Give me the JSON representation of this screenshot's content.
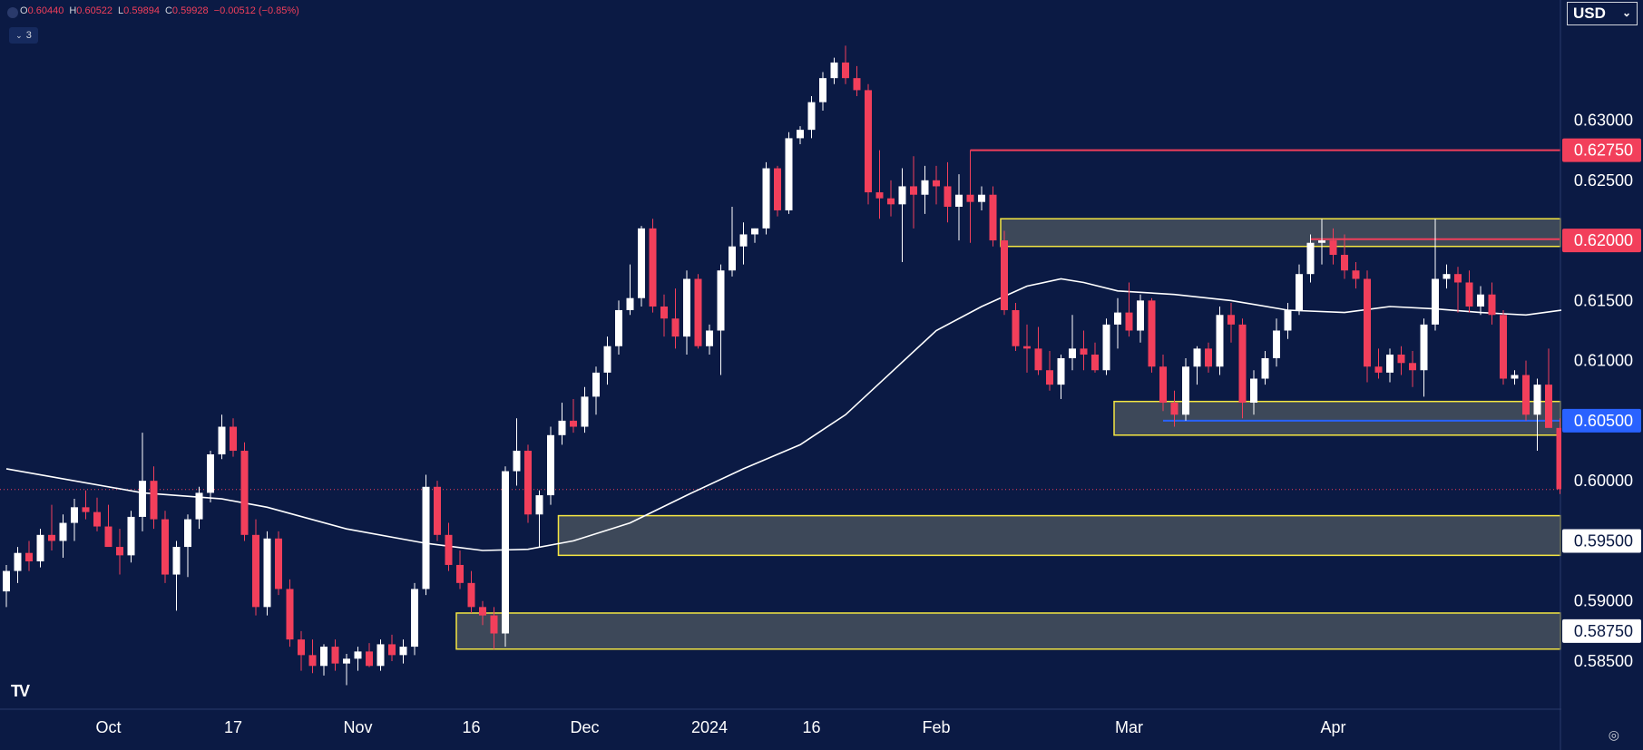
{
  "ohlc": {
    "o_label": "O",
    "o": "0.60440",
    "h_label": "H",
    "h": "0.60522",
    "l_label": "L",
    "l": "0.59894",
    "c_label": "C",
    "c": "0.59928",
    "change": "−0.00512 (−0.85%)"
  },
  "indicators_toggle": "3",
  "currency": "USD",
  "logo_text": "TV",
  "chart_data": {
    "type": "candlestick",
    "ylim": [
      0.581,
      0.64
    ],
    "y_ticks": [
      "0.63000",
      "0.62500",
      "0.61500",
      "0.61000",
      "0.60000",
      "0.59000",
      "0.58500"
    ],
    "x_ticks": [
      "Oct",
      "17",
      "Nov",
      "16",
      "Dec",
      "2024",
      "16",
      "Feb",
      "Mar",
      "Apr"
    ],
    "price_labels": [
      {
        "text": "0.62750",
        "value": 0.6275,
        "color": "#f23f5b"
      },
      {
        "text": "0.62000",
        "value": 0.62,
        "color": "#f23f5b"
      },
      {
        "text": "0.60500",
        "value": 0.605,
        "color": "#2962ff"
      },
      {
        "text": "0.59500",
        "value": 0.595,
        "color": "#ffffff"
      },
      {
        "text": "0.58750",
        "value": 0.5875,
        "color": "#ffffff"
      }
    ],
    "last_close": 0.59928,
    "zones": [
      {
        "start": 88,
        "top": 0.6218,
        "bottom": 0.6195
      },
      {
        "start": 98,
        "top": 0.6066,
        "bottom": 0.6038
      },
      {
        "start": 49,
        "top": 0.5971,
        "bottom": 0.5938
      },
      {
        "start": 40,
        "top": 0.589,
        "bottom": 0.586
      }
    ],
    "hlines": [
      {
        "value": 0.6275,
        "start": 85,
        "color": "#f23f5b"
      },
      {
        "value": 0.6201,
        "start": 115,
        "color": "#f23f5b"
      },
      {
        "value": 0.605,
        "start": 102,
        "color": "#2962ff"
      }
    ],
    "candles": [
      [
        0.5908,
        0.593,
        0.5895,
        0.5925
      ],
      [
        0.5925,
        0.5945,
        0.5915,
        0.594
      ],
      [
        0.594,
        0.595,
        0.5925,
        0.5933
      ],
      [
        0.5933,
        0.596,
        0.5928,
        0.5955
      ],
      [
        0.5955,
        0.598,
        0.5942,
        0.595
      ],
      [
        0.595,
        0.5972,
        0.5936,
        0.5965
      ],
      [
        0.5965,
        0.5985,
        0.595,
        0.5978
      ],
      [
        0.5978,
        0.5992,
        0.5968,
        0.5974
      ],
      [
        0.5974,
        0.5986,
        0.5958,
        0.5962
      ],
      [
        0.5962,
        0.598,
        0.5948,
        0.5945
      ],
      [
        0.5945,
        0.596,
        0.5922,
        0.5938
      ],
      [
        0.5938,
        0.5975,
        0.5932,
        0.597
      ],
      [
        0.597,
        0.604,
        0.5958,
        0.6
      ],
      [
        0.6,
        0.6012,
        0.596,
        0.5968
      ],
      [
        0.5968,
        0.5975,
        0.5915,
        0.5922
      ],
      [
        0.5922,
        0.595,
        0.5892,
        0.5945
      ],
      [
        0.5945,
        0.5972,
        0.592,
        0.5968
      ],
      [
        0.5968,
        0.5995,
        0.596,
        0.599
      ],
      [
        0.599,
        0.6025,
        0.5982,
        0.6022
      ],
      [
        0.6022,
        0.6055,
        0.6018,
        0.6045
      ],
      [
        0.6045,
        0.6052,
        0.602,
        0.6025
      ],
      [
        0.6025,
        0.6032,
        0.595,
        0.5955
      ],
      [
        0.5955,
        0.5968,
        0.5888,
        0.5895
      ],
      [
        0.5895,
        0.5958,
        0.5888,
        0.5952
      ],
      [
        0.5952,
        0.5958,
        0.5905,
        0.591
      ],
      [
        0.591,
        0.5918,
        0.5862,
        0.5868
      ],
      [
        0.5868,
        0.5875,
        0.5842,
        0.5855
      ],
      [
        0.5855,
        0.5868,
        0.584,
        0.5846
      ],
      [
        0.5846,
        0.5864,
        0.5838,
        0.5862
      ],
      [
        0.5862,
        0.5868,
        0.5842,
        0.5848
      ],
      [
        0.5848,
        0.5856,
        0.583,
        0.5852
      ],
      [
        0.5852,
        0.5862,
        0.5842,
        0.5858
      ],
      [
        0.5858,
        0.5865,
        0.5845,
        0.5846
      ],
      [
        0.5846,
        0.5868,
        0.5842,
        0.5864
      ],
      [
        0.5864,
        0.5872,
        0.585,
        0.5855
      ],
      [
        0.5855,
        0.5868,
        0.5848,
        0.5862
      ],
      [
        0.5862,
        0.5915,
        0.5855,
        0.591
      ],
      [
        0.591,
        0.6005,
        0.5905,
        0.5995
      ],
      [
        0.5995,
        0.6,
        0.595,
        0.5955
      ],
      [
        0.5955,
        0.5965,
        0.5925,
        0.593
      ],
      [
        0.593,
        0.5942,
        0.591,
        0.5915
      ],
      [
        0.5915,
        0.5925,
        0.589,
        0.5895
      ],
      [
        0.5895,
        0.59,
        0.588,
        0.5888
      ],
      [
        0.5888,
        0.5895,
        0.586,
        0.5873
      ],
      [
        0.5873,
        0.6012,
        0.5862,
        0.6008
      ],
      [
        0.6008,
        0.6052,
        0.5996,
        0.6025
      ],
      [
        0.6025,
        0.603,
        0.5965,
        0.5972
      ],
      [
        0.5972,
        0.5992,
        0.5945,
        0.5988
      ],
      [
        0.5988,
        0.6045,
        0.598,
        0.6038
      ],
      [
        0.6038,
        0.6065,
        0.603,
        0.605
      ],
      [
        0.605,
        0.6068,
        0.604,
        0.6045
      ],
      [
        0.6045,
        0.6078,
        0.604,
        0.607
      ],
      [
        0.607,
        0.6095,
        0.6055,
        0.609
      ],
      [
        0.609,
        0.612,
        0.608,
        0.6112
      ],
      [
        0.6112,
        0.615,
        0.6105,
        0.6142
      ],
      [
        0.6142,
        0.618,
        0.6138,
        0.6152
      ],
      [
        0.6152,
        0.6212,
        0.6145,
        0.621
      ],
      [
        0.621,
        0.6218,
        0.614,
        0.6145
      ],
      [
        0.6145,
        0.6155,
        0.612,
        0.6135
      ],
      [
        0.6135,
        0.616,
        0.611,
        0.612
      ],
      [
        0.612,
        0.6175,
        0.6105,
        0.6168
      ],
      [
        0.6168,
        0.6172,
        0.611,
        0.6112
      ],
      [
        0.6112,
        0.613,
        0.6105,
        0.6125
      ],
      [
        0.6125,
        0.618,
        0.6088,
        0.6175
      ],
      [
        0.6175,
        0.6228,
        0.617,
        0.6195
      ],
      [
        0.6195,
        0.6215,
        0.618,
        0.6205
      ],
      [
        0.6205,
        0.621,
        0.6198,
        0.621
      ],
      [
        0.621,
        0.6265,
        0.6205,
        0.626
      ],
      [
        0.626,
        0.6262,
        0.622,
        0.6225
      ],
      [
        0.6225,
        0.629,
        0.6222,
        0.6285
      ],
      [
        0.6285,
        0.6295,
        0.628,
        0.6292
      ],
      [
        0.6292,
        0.632,
        0.6285,
        0.6315
      ],
      [
        0.6315,
        0.634,
        0.6308,
        0.6335
      ],
      [
        0.6335,
        0.6352,
        0.633,
        0.6348
      ],
      [
        0.6348,
        0.6362,
        0.633,
        0.6335
      ],
      [
        0.6335,
        0.6345,
        0.632,
        0.6325
      ],
      [
        0.6325,
        0.633,
        0.623,
        0.624
      ],
      [
        0.624,
        0.6275,
        0.6218,
        0.6235
      ],
      [
        0.6235,
        0.625,
        0.622,
        0.623
      ],
      [
        0.623,
        0.626,
        0.6182,
        0.6245
      ],
      [
        0.6245,
        0.627,
        0.621,
        0.6238
      ],
      [
        0.6238,
        0.6262,
        0.6222,
        0.625
      ],
      [
        0.625,
        0.6262,
        0.623,
        0.6245
      ],
      [
        0.6245,
        0.6265,
        0.6215,
        0.6228
      ],
      [
        0.6228,
        0.6255,
        0.62,
        0.6238
      ],
      [
        0.6238,
        0.6275,
        0.6198,
        0.6232
      ],
      [
        0.6232,
        0.6245,
        0.6225,
        0.6238
      ],
      [
        0.6238,
        0.6245,
        0.6195,
        0.62
      ],
      [
        0.62,
        0.6208,
        0.6138,
        0.6142
      ],
      [
        0.6142,
        0.6148,
        0.6108,
        0.6112
      ],
      [
        0.6112,
        0.613,
        0.609,
        0.611
      ],
      [
        0.611,
        0.6128,
        0.6088,
        0.6092
      ],
      [
        0.6092,
        0.6108,
        0.6075,
        0.608
      ],
      [
        0.608,
        0.6105,
        0.6068,
        0.6102
      ],
      [
        0.6102,
        0.6138,
        0.6092,
        0.611
      ],
      [
        0.611,
        0.6125,
        0.6092,
        0.6105
      ],
      [
        0.6105,
        0.6115,
        0.609,
        0.6092
      ],
      [
        0.6092,
        0.6135,
        0.6088,
        0.613
      ],
      [
        0.613,
        0.6152,
        0.611,
        0.614
      ],
      [
        0.614,
        0.6165,
        0.612,
        0.6125
      ],
      [
        0.6125,
        0.6155,
        0.6115,
        0.615
      ],
      [
        0.615,
        0.6152,
        0.609,
        0.6095
      ],
      [
        0.6095,
        0.6105,
        0.6058,
        0.6065
      ],
      [
        0.6065,
        0.6075,
        0.6045,
        0.6055
      ],
      [
        0.6055,
        0.6102,
        0.605,
        0.6095
      ],
      [
        0.6095,
        0.6112,
        0.608,
        0.611
      ],
      [
        0.611,
        0.6115,
        0.609,
        0.6095
      ],
      [
        0.6095,
        0.6145,
        0.6088,
        0.6138
      ],
      [
        0.6138,
        0.6148,
        0.6115,
        0.613
      ],
      [
        0.613,
        0.6135,
        0.6052,
        0.6065
      ],
      [
        0.6065,
        0.6092,
        0.6055,
        0.6085
      ],
      [
        0.6085,
        0.6108,
        0.608,
        0.6102
      ],
      [
        0.6102,
        0.6135,
        0.6095,
        0.6125
      ],
      [
        0.6125,
        0.6148,
        0.6118,
        0.6142
      ],
      [
        0.6142,
        0.618,
        0.6138,
        0.6172
      ],
      [
        0.6172,
        0.6205,
        0.6165,
        0.6198
      ],
      [
        0.6198,
        0.6218,
        0.618,
        0.62
      ],
      [
        0.62,
        0.621,
        0.618,
        0.6188
      ],
      [
        0.6188,
        0.6205,
        0.6168,
        0.6175
      ],
      [
        0.6175,
        0.6182,
        0.616,
        0.6168
      ],
      [
        0.6168,
        0.6175,
        0.6082,
        0.6095
      ],
      [
        0.6095,
        0.611,
        0.6085,
        0.609
      ],
      [
        0.609,
        0.611,
        0.6082,
        0.6105
      ],
      [
        0.6105,
        0.6112,
        0.6088,
        0.6098
      ],
      [
        0.6098,
        0.6108,
        0.6078,
        0.6092
      ],
      [
        0.6092,
        0.6135,
        0.607,
        0.613
      ],
      [
        0.613,
        0.6218,
        0.6125,
        0.6168
      ],
      [
        0.6168,
        0.618,
        0.616,
        0.6172
      ],
      [
        0.6172,
        0.6178,
        0.614,
        0.6165
      ],
      [
        0.6165,
        0.6175,
        0.614,
        0.6145
      ],
      [
        0.6145,
        0.6162,
        0.6138,
        0.6155
      ],
      [
        0.6155,
        0.6165,
        0.613,
        0.6138
      ],
      [
        0.6138,
        0.6142,
        0.608,
        0.6085
      ],
      [
        0.6085,
        0.6092,
        0.608,
        0.6088
      ],
      [
        0.6088,
        0.61,
        0.605,
        0.6055
      ],
      [
        0.6055,
        0.6085,
        0.6025,
        0.608
      ],
      [
        0.608,
        0.611,
        0.6045,
        0.6044
      ],
      [
        0.6044,
        0.6052,
        0.5989,
        0.5993
      ]
    ],
    "ma": [
      [
        0,
        0.601
      ],
      [
        12,
        0.599
      ],
      [
        19,
        0.5985
      ],
      [
        23,
        0.5978
      ],
      [
        30,
        0.596
      ],
      [
        37,
        0.5948
      ],
      [
        42,
        0.5942
      ],
      [
        46,
        0.5943
      ],
      [
        50,
        0.595
      ],
      [
        55,
        0.5965
      ],
      [
        60,
        0.5988
      ],
      [
        65,
        0.601
      ],
      [
        70,
        0.603
      ],
      [
        74,
        0.6055
      ],
      [
        78,
        0.609
      ],
      [
        82,
        0.6125
      ],
      [
        86,
        0.6145
      ],
      [
        90,
        0.6162
      ],
      [
        93,
        0.6168
      ],
      [
        95,
        0.6165
      ],
      [
        98,
        0.6158
      ],
      [
        103,
        0.6155
      ],
      [
        108,
        0.615
      ],
      [
        113,
        0.6142
      ],
      [
        118,
        0.614
      ],
      [
        122,
        0.6145
      ],
      [
        126,
        0.6143
      ],
      [
        130,
        0.614
      ],
      [
        134,
        0.6138
      ],
      [
        138,
        0.6143
      ],
      [
        142,
        0.6138
      ],
      [
        145,
        0.6128
      ]
    ]
  }
}
